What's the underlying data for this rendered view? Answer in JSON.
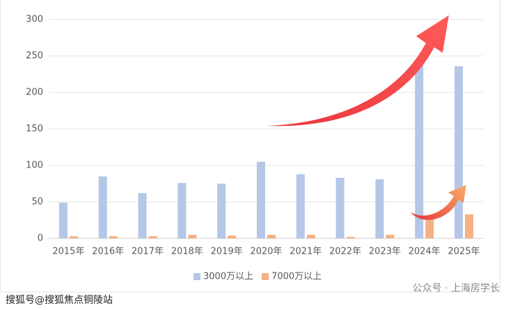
{
  "chart_data": {
    "type": "bar",
    "categories": [
      "2015年",
      "2016年",
      "2017年",
      "2018年",
      "2019年",
      "2020年",
      "2021年",
      "2022年",
      "2023年",
      "2024年",
      "2025年"
    ],
    "series": [
      {
        "name": "3000万以上",
        "color": "#b4c7e7",
        "values": [
          49,
          85,
          62,
          76,
          75,
          105,
          88,
          83,
          81,
          240,
          236
        ]
      },
      {
        "name": "7000万以上",
        "color": "#f4b183",
        "values": [
          3,
          3,
          3,
          5,
          4,
          5,
          5,
          2,
          5,
          27,
          33
        ]
      }
    ],
    "ylim": [
      0,
      300
    ],
    "yticks": [
      0,
      50,
      100,
      150,
      200,
      250,
      300
    ],
    "grid": true,
    "legend": "bottom",
    "watermarks": [
      "搜狐号@搜狐焦点铜陵站",
      "公众号 · 上海房学长"
    ]
  }
}
